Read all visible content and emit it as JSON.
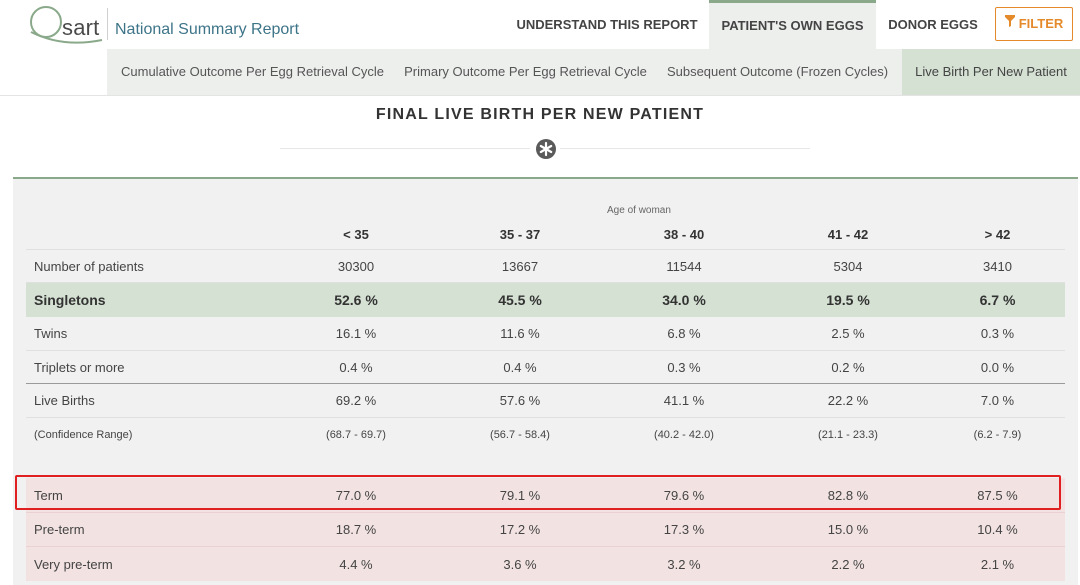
{
  "brand": {
    "logo_text": "sart",
    "report_title": "National Summary Report"
  },
  "nav": {
    "understand": "UNDERSTAND THIS REPORT",
    "own_eggs": "PATIENT'S OWN EGGS",
    "donor_eggs": "DONOR EGGS",
    "filter": "FILTER"
  },
  "subnav": {
    "tabs": [
      {
        "label": "Cumulative Outcome Per Egg Retrieval Cycle"
      },
      {
        "label": "Primary Outcome Per Egg Retrieval Cycle"
      },
      {
        "label": "Subsequent Outcome (Frozen Cycles)"
      },
      {
        "label": "Live Birth Per New Patient"
      }
    ]
  },
  "section": {
    "title": "FINAL LIVE BIRTH PER NEW PATIENT"
  },
  "table": {
    "group_caption": "Age of woman",
    "columns": [
      "< 35",
      "35 - 37",
      "38 - 40",
      "41 - 42",
      "> 42"
    ],
    "rows": [
      {
        "label": "Number of patients",
        "values": [
          "30300",
          "13667",
          "11544",
          "5304",
          "3410"
        ]
      },
      {
        "label": "Singletons",
        "values": [
          "52.6 %",
          "45.5 %",
          "34.0 %",
          "19.5 %",
          "6.7 %"
        ]
      },
      {
        "label": "Twins",
        "values": [
          "16.1 %",
          "11.6 %",
          "6.8 %",
          "2.5 %",
          "0.3 %"
        ]
      },
      {
        "label": "Triplets or more",
        "values": [
          "0.4 %",
          "0.4 %",
          "0.3 %",
          "0.2 %",
          "0.0 %"
        ]
      },
      {
        "label": "Live Births",
        "values": [
          "69.2 %",
          "57.6 %",
          "41.1 %",
          "22.2 %",
          "7.0 %"
        ]
      },
      {
        "label": "(Confidence Range)",
        "values": [
          "(68.7 - 69.7)",
          "(56.7 - 58.4)",
          "(40.2 - 42.0)",
          "(21.1 - 23.3)",
          "(6.2 - 7.9)"
        ]
      },
      {
        "label": "Term",
        "values": [
          "77.0 %",
          "79.1 %",
          "79.6 %",
          "82.8 %",
          "87.5 %"
        ]
      },
      {
        "label": "Pre-term",
        "values": [
          "18.7 %",
          "17.2 %",
          "17.3 %",
          "15.0 %",
          "10.4 %"
        ]
      },
      {
        "label": "Very pre-term",
        "values": [
          "4.4 %",
          "3.6 %",
          "3.2 %",
          "2.2 %",
          "2.1 %"
        ]
      }
    ]
  },
  "colors": {
    "accent_green": "#8aa98a",
    "brand_teal": "#3d7488",
    "filter_orange": "#e58a2b",
    "highlight_red": "#e02020"
  }
}
